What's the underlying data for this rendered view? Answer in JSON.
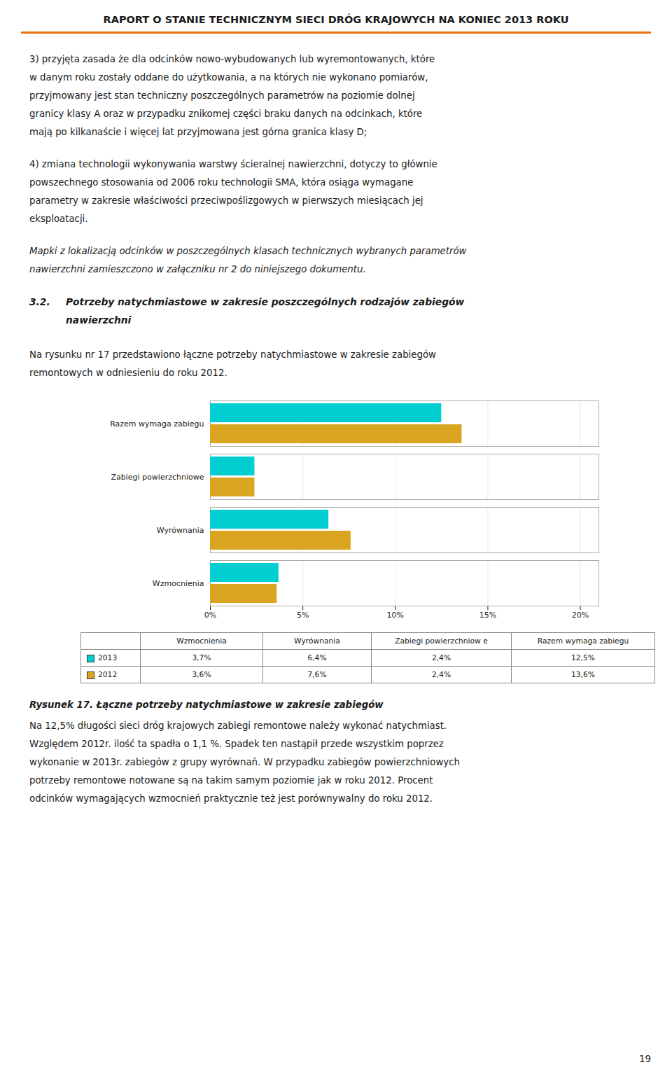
{
  "page": {
    "header": "RAPORT O STANIE TECHNICZNYM SIECI DRÓG KRAJOWYCH NA KONIEC 2013 ROKU",
    "paragraphs_before": [
      [
        "3)  przyjęta zasada że dla odcinków nowo-wybudowanych lub wyremontowanych, które",
        "w danym roku zostały oddane do użytkowania, a na których nie wykonano pomiarów,",
        "przyjmowany jest stan techniczny poszczególnych parametrów na poziomie dolnej",
        "granicy klasy A oraz w przypadku znikomej części braku danych na odcinkach, które",
        "mają po kilkanaście i więcej lat przyjmowana jest górna granica klasy D;"
      ],
      [
        "4)  zmiana technologii wykonywania warstwy ścieralnej nawierzchni, dotyczy to głównie",
        "powszechnego stosowania od 2006 roku technologii SMA, która osiąga wymagane",
        "parametry w zakresie właściwości przeciwpoślizgowych w pierwszych miesiącach jej",
        "eksploatacji."
      ],
      [
        "Mapki z lokalizacją odcinków w poszczególnych klasach technicznych wybranych parametrów",
        "nawierzchni zamieszczono w załączniku nr 2 do niniejszego dokumentu."
      ]
    ],
    "section_number": "3.2.",
    "section_title_lines": [
      "Potrzeby natychmiastowe w zakresie poszczególnych rodzajów zabiegów",
      "nawierzchni"
    ],
    "intro_lines": [
      "Na rysunku nr 17 przedstawiono łączne potrzeby natychmiastowe w zakresie zabiegów",
      "remontowych w odniesieniu do roku 2012."
    ],
    "caption": "Rysunek 17. Łączne potrzeby natychmiastowe w zakresie zabiegów",
    "paragraphs_after": [
      [
        "Na 12,5% długości sieci dróg krajowych zabiegi remontowe należy wykonać natychmiast.",
        "Względem 2012r. ilość ta spadła o 1,1 %. Spadek ten nastąpił przede wszystkim poprzez",
        "wykonanie w 2013r. zabiegów z grupy wyrównań. W przypadku zabiegów powierzchniowych",
        "potrzeby remontowe notowane są na takim samym poziomie jak w roku 2012. Procent",
        "odcinków wymagających wzmocnień praktycznie też jest porównywalny do roku 2012."
      ]
    ],
    "page_number": "19"
  },
  "chart_data": {
    "type": "bar",
    "orientation": "horizontal",
    "categories": [
      "Razem wymaga zabiegu",
      "Zabiegi powierzchniowe",
      "Wyrównania",
      "Wzmocnienia"
    ],
    "series": [
      {
        "name": "2013",
        "color": "#00CED1",
        "values": [
          12.5,
          2.4,
          6.4,
          3.7
        ],
        "value_labels": [
          "12,5%",
          "2,4%",
          "6,4%",
          "3,7%"
        ]
      },
      {
        "name": "2012",
        "color": "#DAA520",
        "values": [
          13.6,
          2.4,
          7.6,
          3.6
        ],
        "value_labels": [
          "13,6%",
          "2,4%",
          "7,6%",
          "3,6%"
        ]
      }
    ],
    "table_headers": [
      "Wzmocnienia",
      "Wyrównania",
      "Zabiegi powierzchniow e",
      "Razem wymaga zabiegu"
    ],
    "xlim": [
      0,
      21
    ],
    "xticks": [
      {
        "value": 0,
        "label": "0%"
      },
      {
        "value": 5,
        "label": "5%"
      },
      {
        "value": 10,
        "label": "10%"
      },
      {
        "value": 15,
        "label": "15%"
      },
      {
        "value": 20,
        "label": "20%"
      }
    ],
    "grid": true
  }
}
